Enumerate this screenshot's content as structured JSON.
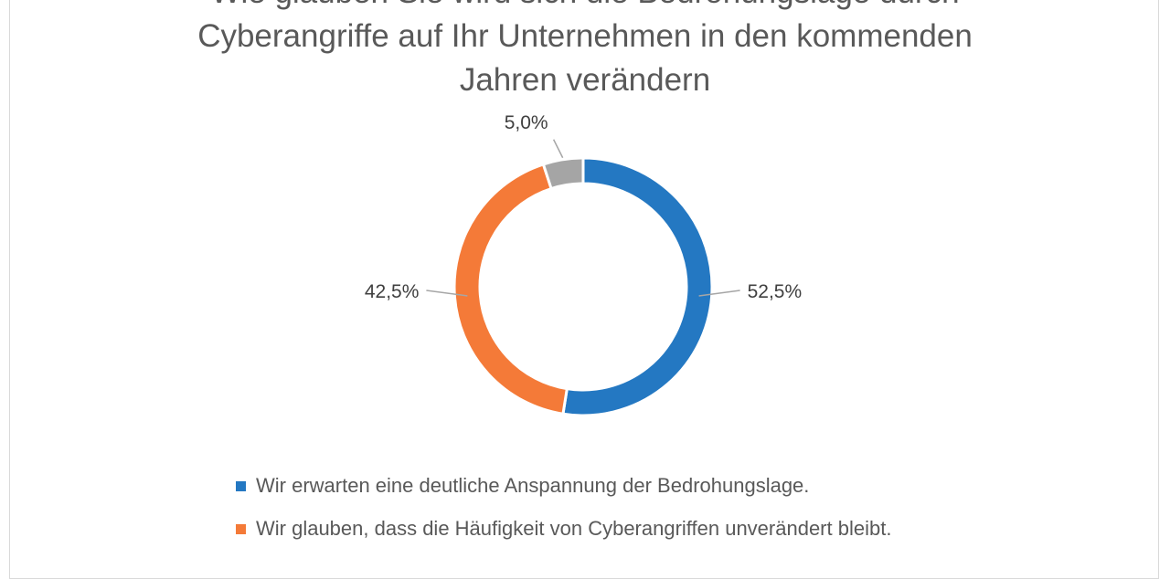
{
  "chart_data": {
    "type": "pie",
    "title_lines": [
      "Wie glauben Sie wird sich die Bedrohungslage durch",
      "Cyberangriffe auf Ihr Unternehmen in den kommenden",
      "Jahren verändern"
    ],
    "slices": [
      {
        "label": "Wir erwarten eine deutliche Anspannung der Bedrohungslage.",
        "value": 52.5,
        "value_label": "52,5%",
        "color": "#2478c2"
      },
      {
        "label": "Wir glauben, dass die Häufigkeit von Cyberangriffen unverändert bleibt.",
        "value": 42.5,
        "value_label": "42,5%",
        "color": "#f47a38"
      },
      {
        "label": "",
        "value": 5.0,
        "value_label": "5,0%",
        "color": "#a5a5a5"
      }
    ],
    "donut": true,
    "legend": {
      "position": "bottom"
    }
  }
}
